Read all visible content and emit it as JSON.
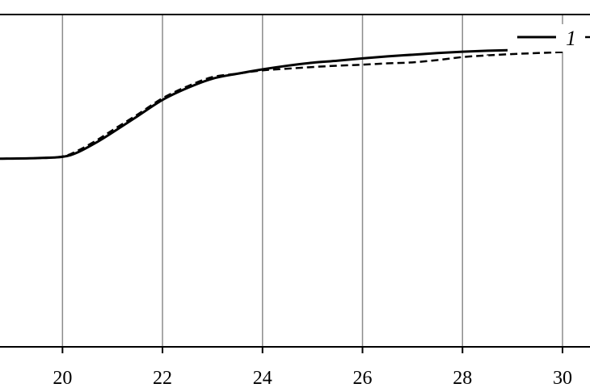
{
  "chart_data": {
    "type": "line",
    "title": "",
    "xlabel": "",
    "ylabel": "",
    "xlim": [
      18.75,
      30.55
    ],
    "ylim": [
      0,
      1
    ],
    "x_ticks": [
      20,
      22,
      24,
      26,
      28,
      30
    ],
    "x_tick_labels": [
      "20",
      "22",
      "24",
      "26",
      "28",
      "30"
    ],
    "grid": {
      "vertical": true,
      "horizontal": false
    },
    "legend_position": "top-right",
    "series": [
      {
        "name": "1",
        "style": "solid",
        "x": [
          18.75,
          19.5,
          20.0,
          20.3,
          20.7,
          21.0,
          21.5,
          22.0,
          22.5,
          23.0,
          23.5,
          24.0,
          24.5,
          25.0,
          25.5,
          26.0,
          26.5,
          27.0,
          27.5,
          28.0,
          28.5,
          29.0,
          29.5,
          30.0
        ],
        "y": [
          0.566,
          0.568,
          0.572,
          0.585,
          0.617,
          0.645,
          0.694,
          0.743,
          0.779,
          0.807,
          0.822,
          0.835,
          0.846,
          0.855,
          0.861,
          0.868,
          0.874,
          0.879,
          0.884,
          0.888,
          0.891,
          0.893,
          0.895,
          0.897
        ]
      },
      {
        "name": "",
        "style": "dashed",
        "x": [
          18.75,
          19.5,
          20.0,
          20.3,
          20.7,
          21.0,
          21.5,
          22.0,
          22.5,
          23.0,
          23.5,
          24.0,
          24.5,
          25.0,
          25.5,
          26.0,
          26.5,
          27.0,
          27.5,
          28.0,
          28.5,
          29.0,
          29.5,
          30.0
        ],
        "y": [
          0.566,
          0.568,
          0.573,
          0.59,
          0.623,
          0.652,
          0.699,
          0.748,
          0.784,
          0.812,
          0.822,
          0.832,
          0.837,
          0.842,
          0.846,
          0.849,
          0.853,
          0.856,
          0.863,
          0.872,
          0.877,
          0.881,
          0.884,
          0.887
        ]
      }
    ]
  },
  "legend": {
    "items": [
      {
        "label": "1",
        "style": "solid"
      }
    ]
  },
  "colors": {
    "line": "#000000",
    "grid": "#8c8c8c",
    "frame": "#000000",
    "background": "#ffffff"
  }
}
